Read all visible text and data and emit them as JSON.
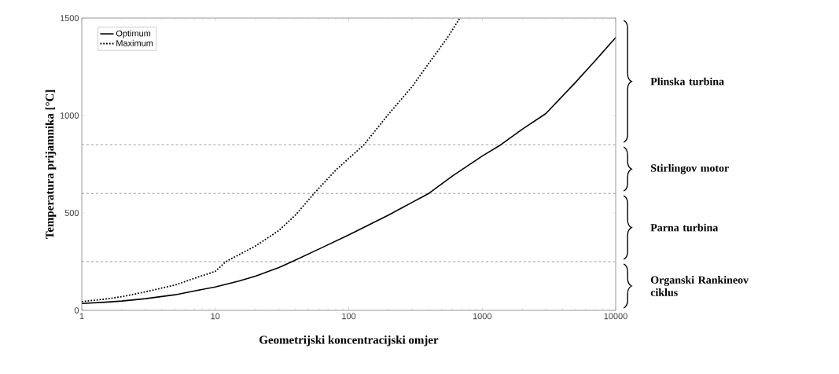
{
  "chart_data": {
    "type": "line",
    "xlabel": "Geometrijski koncentracijski omjer",
    "ylabel": "Temperatura prijamnika [°C]",
    "log": "x",
    "xlim": [
      1,
      10000
    ],
    "xticks": [
      1,
      10,
      100,
      1000,
      10000
    ],
    "ylim": [
      0,
      1500
    ],
    "yticks": [
      0,
      500,
      1000,
      1500
    ],
    "grid": false,
    "legend": "top left",
    "series": [
      {
        "name": "Optimum",
        "color": "#000000",
        "line_style": "solid",
        "x": [
          1,
          1.5,
          2,
          3,
          5,
          7,
          10,
          15,
          20,
          30,
          37.6,
          60,
          100,
          200,
          300,
          398,
          600,
          1000,
          1380,
          2000,
          3000,
          5000,
          7000,
          10000
        ],
        "values": [
          35,
          42,
          48,
          60,
          80,
          100,
          120,
          150,
          175,
          220,
          250,
          315,
          387,
          490,
          555,
          600,
          690,
          792,
          850,
          930,
          1010,
          1170,
          1280,
          1400
        ]
      },
      {
        "name": "Maximum",
        "color": "#000000",
        "line_style": "dotted",
        "x": [
          1,
          1.5,
          2,
          3,
          5,
          7,
          10,
          12,
          20,
          30,
          40,
          55,
          80,
          130,
          195,
          300,
          400,
          550,
          680
        ],
        "values": [
          45,
          58,
          70,
          95,
          130,
          165,
          200,
          250,
          330,
          410,
          490,
          600,
          720,
          850,
          1000,
          1150,
          1270,
          1400,
          1500
        ]
      }
    ],
    "ref_lines": [
      {
        "axis": "y",
        "value": 250,
        "color": "#555555",
        "line_style": "dashed"
      },
      {
        "axis": "y",
        "value": 600,
        "color": "#555555",
        "line_style": "dashed"
      },
      {
        "axis": "y",
        "value": 850,
        "color": "#555555",
        "line_style": "dashed"
      }
    ],
    "annotations": [
      "Plinska turbina",
      "Stirlingov motor",
      "Parna turbina",
      "Organski Rankineov ciklus"
    ]
  }
}
